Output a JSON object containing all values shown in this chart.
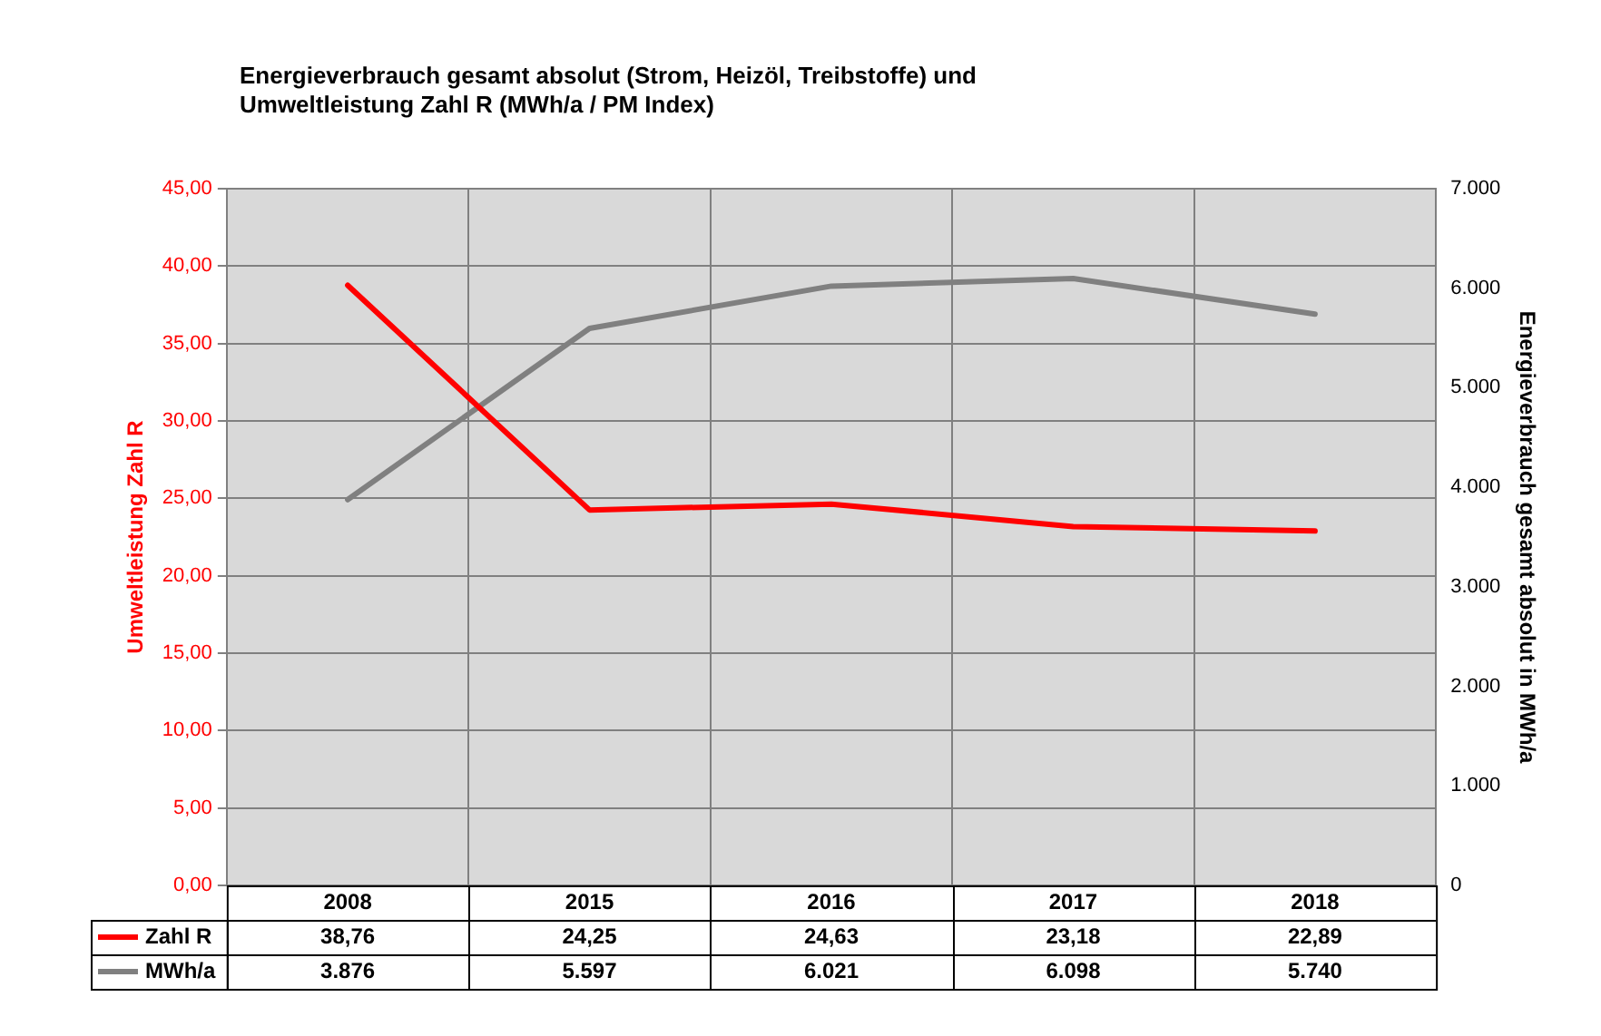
{
  "chart_data": {
    "type": "line",
    "title": "Energieverbrauch gesamt absolut (Strom, Heizöl, Treibstoffe) und Umweltleistung Zahl R (MWh/a / PM Index)",
    "ylabel": "Umweltleistung Zahl R",
    "y2label": "Energieverbrauch gesamt absolut in MWh/a",
    "categories": [
      "2008",
      "2015",
      "2016",
      "2017",
      "2018"
    ],
    "series": [
      {
        "name": "Zahl R",
        "color": "#ff0000",
        "values": [
          38.76,
          24.25,
          24.63,
          23.18,
          22.89
        ],
        "value_labels": [
          "38,76",
          "24,25",
          "24,63",
          "23,18",
          "22,89"
        ]
      },
      {
        "name": "MWh/a",
        "color": "#808080",
        "axis": "y2",
        "values": [
          3876,
          5597,
          6021,
          6098,
          5740
        ],
        "value_labels": [
          "3.876",
          "5.597",
          "6.021",
          "6.098",
          "5.740"
        ]
      }
    ],
    "ylim": [
      0,
      45
    ],
    "yticks": [
      {
        "value": 0,
        "label": "0,00"
      },
      {
        "value": 5,
        "label": "5,00"
      },
      {
        "value": 10,
        "label": "10,00"
      },
      {
        "value": 15,
        "label": "15,00"
      },
      {
        "value": 20,
        "label": "20,00"
      },
      {
        "value": 25,
        "label": "25,00"
      },
      {
        "value": 30,
        "label": "30,00"
      },
      {
        "value": 35,
        "label": "35,00"
      },
      {
        "value": 40,
        "label": "40,00"
      },
      {
        "value": 45,
        "label": "45,00"
      }
    ],
    "y2lim": [
      0,
      7000
    ],
    "y2ticks": [
      0,
      {
        "value": 1000,
        "label": "1.000"
      },
      {
        "value": 2000,
        "label": "2.000"
      },
      {
        "value": 3000,
        "label": "3.000"
      },
      {
        "value": 4000,
        "label": "4.000"
      },
      {
        "value": 5000,
        "label": "5.000"
      },
      {
        "value": 6000,
        "label": "6.000"
      },
      {
        "value": 7000,
        "label": "7.000"
      }
    ],
    "grid": true,
    "legend": "bottom",
    "marker": "none",
    "line_style": "solid"
  }
}
